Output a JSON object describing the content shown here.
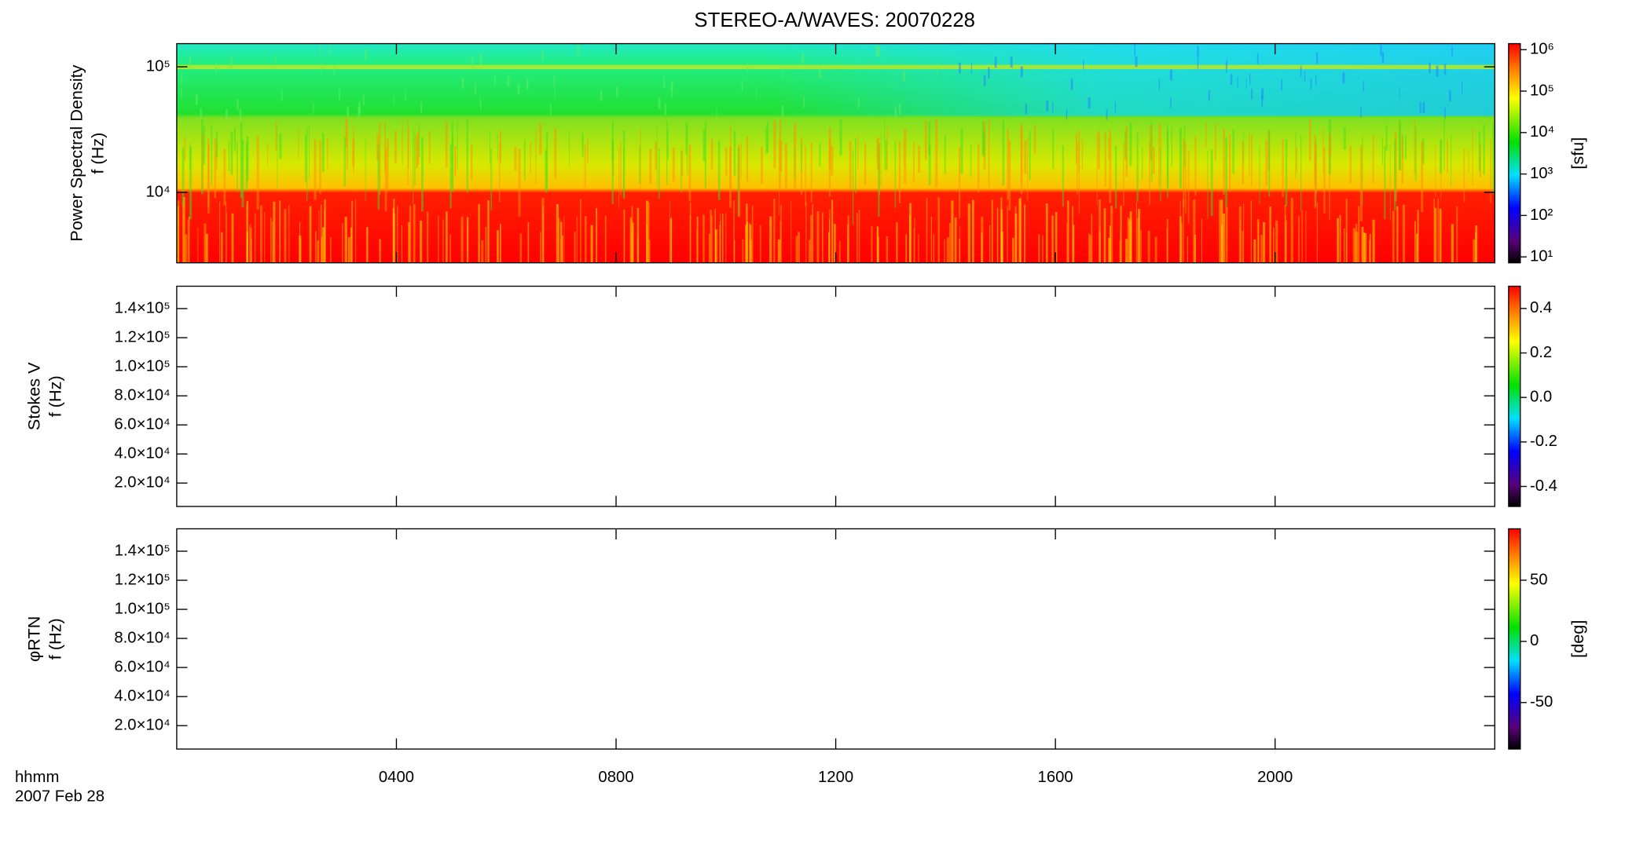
{
  "chart_data": [
    {
      "type": "heatmap",
      "title": "STEREO-A/WAVES: 20070228",
      "ylabel": [
        "Power Spectral Density",
        "f (Hz)"
      ],
      "log_y": true,
      "ylim": [
        2750,
        153000
      ],
      "yticks": [
        {
          "value": 10000,
          "label": "10⁴"
        },
        {
          "value": 100000,
          "label": "10⁵"
        }
      ],
      "colorbar": {
        "log": true,
        "lim": [
          7.2,
          1400000
        ],
        "label": "[sfu]",
        "ticks": [
          {
            "value": 10,
            "label": "10¹"
          },
          {
            "value": 100,
            "label": "10²"
          },
          {
            "value": 1000,
            "label": "10³"
          },
          {
            "value": 10000,
            "label": "10⁴"
          },
          {
            "value": 100000,
            "label": "10⁵"
          },
          {
            "value": 1000000,
            "label": "10⁶"
          }
        ]
      }
    },
    {
      "type": "heatmap",
      "ylabel": [
        "Stokes V",
        "f (Hz)"
      ],
      "log_y": false,
      "ylim": [
        3900,
        155400
      ],
      "yticks": [
        {
          "value": 20000,
          "label": "2.0×10⁴"
        },
        {
          "value": 40000,
          "label": "4.0×10⁴"
        },
        {
          "value": 60000,
          "label": "6.0×10⁴"
        },
        {
          "value": 80000,
          "label": "8.0×10⁴"
        },
        {
          "value": 100000,
          "label": "1.0×10⁵"
        },
        {
          "value": 120000,
          "label": "1.2×10⁵"
        },
        {
          "value": 140000,
          "label": "1.4×10⁵"
        }
      ],
      "colorbar": {
        "log": false,
        "lim": [
          -0.49,
          0.5
        ],
        "ticks": [
          -0.4,
          -0.2,
          {
            "value": 0,
            "label": "0.0"
          },
          0.2,
          0.4
        ]
      }
    },
    {
      "type": "heatmap",
      "ylabel": [
        "φRTN",
        "f (Hz)"
      ],
      "log_y": false,
      "ylim": [
        3900,
        155400
      ],
      "yticks": [
        {
          "value": 20000,
          "label": "2.0×10⁴"
        },
        {
          "value": 40000,
          "label": "4.0×10⁴"
        },
        {
          "value": 60000,
          "label": "6.0×10⁴"
        },
        {
          "value": 80000,
          "label": "8.0×10⁴"
        },
        {
          "value": 100000,
          "label": "1.0×10⁵"
        },
        {
          "value": 120000,
          "label": "1.2×10⁵"
        },
        {
          "value": 140000,
          "label": "1.4×10⁵"
        }
      ],
      "colorbar": {
        "log": false,
        "lim": [
          -88,
          92
        ],
        "label": "[deg]",
        "ticks": [
          -50,
          0,
          50
        ]
      },
      "xlim": [
        0,
        24
      ],
      "xticks": [
        {
          "value": 4,
          "label": "0400"
        },
        {
          "value": 8,
          "label": "0800"
        },
        {
          "value": 12,
          "label": "1200"
        },
        {
          "value": 16,
          "label": "1600"
        },
        {
          "value": 20,
          "label": "2000"
        }
      ],
      "x_annotation": [
        "hhmm",
        "2007 Feb 28"
      ]
    }
  ]
}
